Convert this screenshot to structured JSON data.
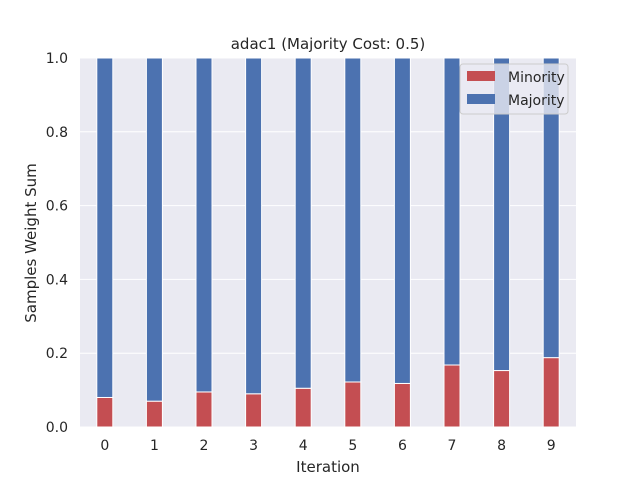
{
  "chart_data": {
    "type": "bar",
    "stacked": true,
    "title": "adac1 (Majority Cost: 0.5)",
    "xlabel": "Iteration",
    "ylabel": "Samples Weight Sum",
    "categories": [
      "0",
      "1",
      "2",
      "3",
      "4",
      "5",
      "6",
      "7",
      "8",
      "9"
    ],
    "series": [
      {
        "name": "Minority",
        "color": "#c44e52",
        "values": [
          0.08,
          0.07,
          0.095,
          0.09,
          0.105,
          0.122,
          0.118,
          0.168,
          0.153,
          0.188
        ]
      },
      {
        "name": "Majority",
        "color": "#4c72b0",
        "values": [
          0.92,
          0.93,
          0.905,
          0.91,
          0.895,
          0.878,
          0.882,
          0.832,
          0.847,
          0.812
        ]
      }
    ],
    "ylim": [
      0,
      1.0
    ],
    "yticks": [
      "0.0",
      "0.2",
      "0.4",
      "0.6",
      "0.8",
      "1.0"
    ],
    "grid": true,
    "background": "#eaeaf2",
    "legend": "top-right"
  }
}
